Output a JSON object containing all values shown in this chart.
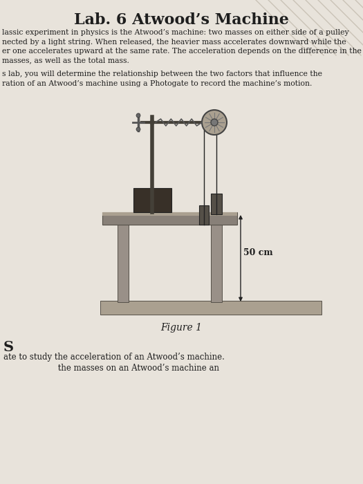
{
  "title": "Lab. 6 Atwood’s Machine",
  "bg_color": "#c8c2b8",
  "page_color": "#e8e3db",
  "title_fontsize": 16,
  "para1_lines": [
    "lassic experiment in physics is the Atwood’s machine: two masses on either side of a pulley",
    "nected by a light string. When released, the heavier mass accelerates downward while the",
    "er one accelerates upward at the same rate. The acceleration depends on the difference in the",
    "masses, as well as the total mass."
  ],
  "para2_lines": [
    "s lab, you will determine the relationship between the two factors that influence the",
    "ration of an Atwood’s machine using a Photogate to record the machine’s motion."
  ],
  "figure_label": "Figure 1",
  "section_label": "S",
  "bottom_line1": "ate to study the acceleration of an Atwood’s machine.",
  "bottom_line2": "                     the masses on an Atwood’s machine an",
  "label_50cm": "50 cm",
  "text_color": "#1e1e1e",
  "table_color": "#888078",
  "table_edge": "#555048",
  "leg_color": "#999088",
  "ground_color": "#aaa090",
  "mass_color": "#555048",
  "stand_color": "#444038",
  "string_color": "#222222",
  "pulley_color": "#888070",
  "diag_color": "#b0a898"
}
